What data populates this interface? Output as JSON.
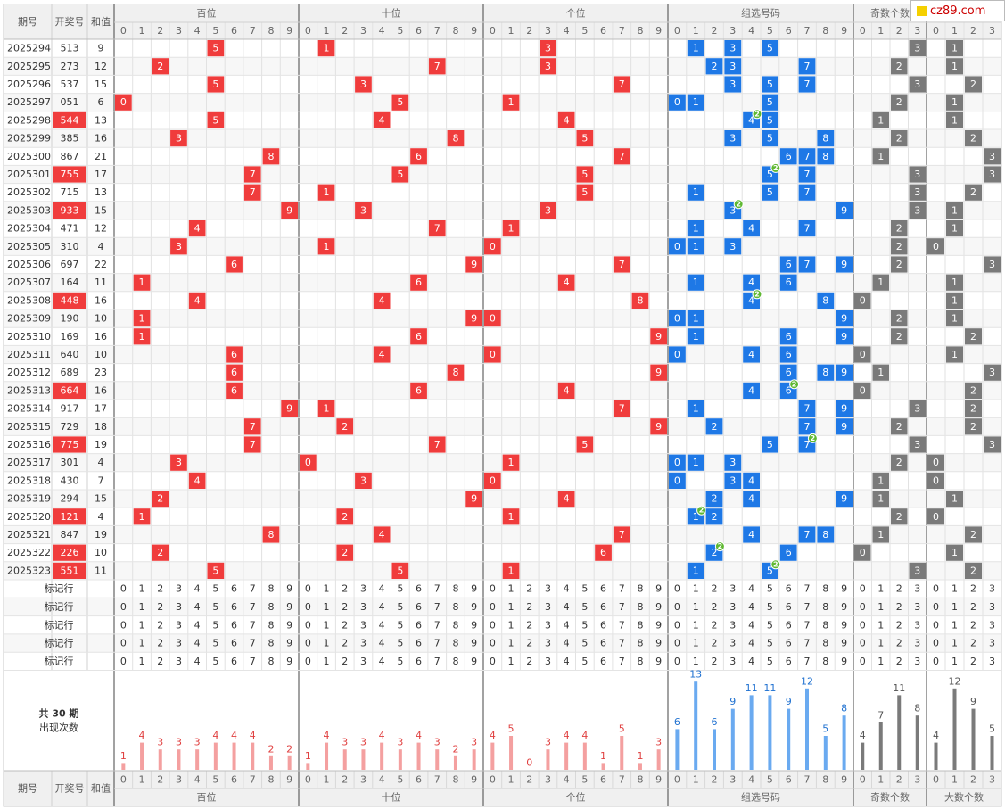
{
  "header": {
    "period_label": "期号",
    "draw_label": "开奖号",
    "sum_label": "和值",
    "groups": [
      "百位",
      "十位",
      "个位",
      "组选号码",
      "奇数个数",
      "大数个数"
    ]
  },
  "rows": [
    {
      "period": "2025294",
      "draw": "513",
      "sum": "9",
      "pair": false,
      "odd": 3,
      "big": 1
    },
    {
      "period": "2025295",
      "draw": "273",
      "sum": "12",
      "pair": false,
      "odd": 2,
      "big": 1
    },
    {
      "period": "2025296",
      "draw": "537",
      "sum": "15",
      "pair": false,
      "odd": 3,
      "big": 2
    },
    {
      "period": "2025297",
      "draw": "051",
      "sum": "6",
      "pair": false,
      "odd": 2,
      "big": 1
    },
    {
      "period": "2025298",
      "draw": "544",
      "sum": "13",
      "pair": true,
      "odd": 1,
      "big": 1
    },
    {
      "period": "2025299",
      "draw": "385",
      "sum": "16",
      "pair": false,
      "odd": 2,
      "big": 2
    },
    {
      "period": "2025300",
      "draw": "867",
      "sum": "21",
      "pair": false,
      "odd": 1,
      "big": 3
    },
    {
      "period": "2025301",
      "draw": "755",
      "sum": "17",
      "pair": true,
      "odd": 3,
      "big": 3
    },
    {
      "period": "2025302",
      "draw": "715",
      "sum": "13",
      "pair": false,
      "odd": 3,
      "big": 2
    },
    {
      "period": "2025303",
      "draw": "933",
      "sum": "15",
      "pair": true,
      "odd": 3,
      "big": 1
    },
    {
      "period": "2025304",
      "draw": "471",
      "sum": "12",
      "pair": false,
      "odd": 2,
      "big": 1
    },
    {
      "period": "2025305",
      "draw": "310",
      "sum": "4",
      "pair": false,
      "odd": 2,
      "big": 0
    },
    {
      "period": "2025306",
      "draw": "697",
      "sum": "22",
      "pair": false,
      "odd": 2,
      "big": 3
    },
    {
      "period": "2025307",
      "draw": "164",
      "sum": "11",
      "pair": false,
      "odd": 1,
      "big": 1
    },
    {
      "period": "2025308",
      "draw": "448",
      "sum": "16",
      "pair": true,
      "odd": 0,
      "big": 1
    },
    {
      "period": "2025309",
      "draw": "190",
      "sum": "10",
      "pair": false,
      "odd": 2,
      "big": 1
    },
    {
      "period": "2025310",
      "draw": "169",
      "sum": "16",
      "pair": false,
      "odd": 2,
      "big": 2
    },
    {
      "period": "2025311",
      "draw": "640",
      "sum": "10",
      "pair": false,
      "odd": 0,
      "big": 1
    },
    {
      "period": "2025312",
      "draw": "689",
      "sum": "23",
      "pair": false,
      "odd": 1,
      "big": 3
    },
    {
      "period": "2025313",
      "draw": "664",
      "sum": "16",
      "pair": true,
      "odd": 0,
      "big": 2
    },
    {
      "period": "2025314",
      "draw": "917",
      "sum": "17",
      "pair": false,
      "odd": 3,
      "big": 2
    },
    {
      "period": "2025315",
      "draw": "729",
      "sum": "18",
      "pair": false,
      "odd": 2,
      "big": 2
    },
    {
      "period": "2025316",
      "draw": "775",
      "sum": "19",
      "pair": true,
      "odd": 3,
      "big": 3
    },
    {
      "period": "2025317",
      "draw": "301",
      "sum": "4",
      "pair": false,
      "odd": 2,
      "big": 0
    },
    {
      "period": "2025318",
      "draw": "430",
      "sum": "7",
      "pair": false,
      "odd": 1,
      "big": 0
    },
    {
      "period": "2025319",
      "draw": "294",
      "sum": "15",
      "pair": false,
      "odd": 1,
      "big": 1
    },
    {
      "period": "2025320",
      "draw": "121",
      "sum": "4",
      "pair": true,
      "odd": 2,
      "big": 0
    },
    {
      "period": "2025321",
      "draw": "847",
      "sum": "19",
      "pair": false,
      "odd": 1,
      "big": 2
    },
    {
      "period": "2025322",
      "draw": "226",
      "sum": "10",
      "pair": true,
      "odd": 0,
      "big": 1
    },
    {
      "period": "2025323",
      "draw": "551",
      "sum": "11",
      "pair": true,
      "odd": 3,
      "big": 2
    }
  ],
  "mark_rows_label": "标记行",
  "mark_rows_count": 5,
  "stats_label": [
    "共 30 期",
    "出现次数"
  ],
  "chart_data": {
    "type": "bar",
    "title": "",
    "panels": [
      {
        "name": "百位",
        "categories": [
          "0",
          "1",
          "2",
          "3",
          "4",
          "5",
          "6",
          "7",
          "8",
          "9"
        ],
        "values": [
          1,
          4,
          3,
          3,
          3,
          4,
          4,
          4,
          2,
          2
        ]
      },
      {
        "name": "十位",
        "categories": [
          "0",
          "1",
          "2",
          "3",
          "4",
          "5",
          "6",
          "7",
          "8",
          "9"
        ],
        "values": [
          1,
          4,
          3,
          3,
          4,
          3,
          4,
          3,
          2,
          3
        ]
      },
      {
        "name": "个位",
        "categories": [
          "0",
          "1",
          "2",
          "3",
          "4",
          "5",
          "6",
          "7",
          "8",
          "9"
        ],
        "values": [
          4,
          5,
          0,
          3,
          4,
          4,
          1,
          5,
          1,
          3
        ]
      },
      {
        "name": "组选号码",
        "categories": [
          "0",
          "1",
          "2",
          "3",
          "4",
          "5",
          "6",
          "7",
          "8",
          "9"
        ],
        "values": [
          6,
          13,
          6,
          9,
          11,
          11,
          9,
          12,
          5,
          8
        ]
      },
      {
        "name": "奇数个数",
        "categories": [
          "0",
          "1",
          "2",
          "3"
        ],
        "values": [
          4,
          7,
          11,
          8
        ]
      },
      {
        "name": "大数个数",
        "categories": [
          "0",
          "1",
          "2",
          "3"
        ],
        "values": [
          4,
          12,
          9,
          5
        ]
      }
    ]
  },
  "colors": {
    "position": "#f03c3c",
    "group": "#1e78e6",
    "count": "#7a7a7a",
    "pair_badge": "#5fb832",
    "bar_pos": "#f4a0a0",
    "bar_group": "#6aaaf0",
    "bar_count": "#a8a8a8"
  },
  "logo_text": "cz89.com"
}
